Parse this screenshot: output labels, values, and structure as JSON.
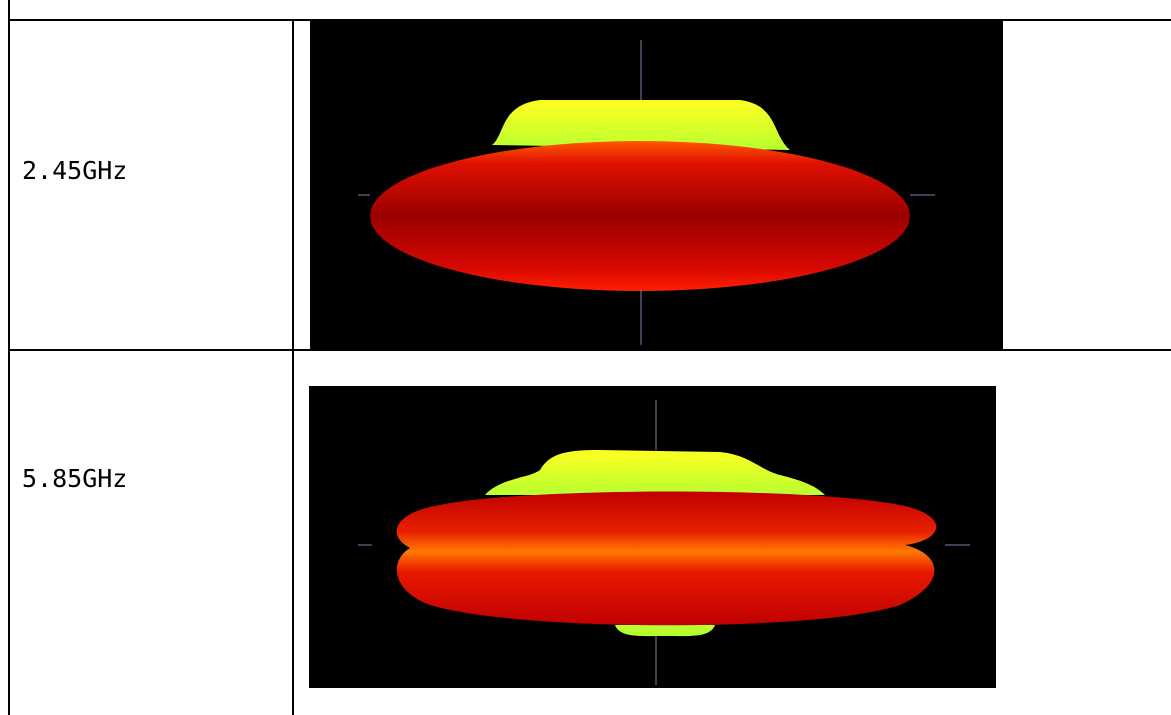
{
  "table": {
    "rows": [
      {
        "label": "2.45GHz"
      },
      {
        "label": "5.85GHz"
      }
    ]
  }
}
